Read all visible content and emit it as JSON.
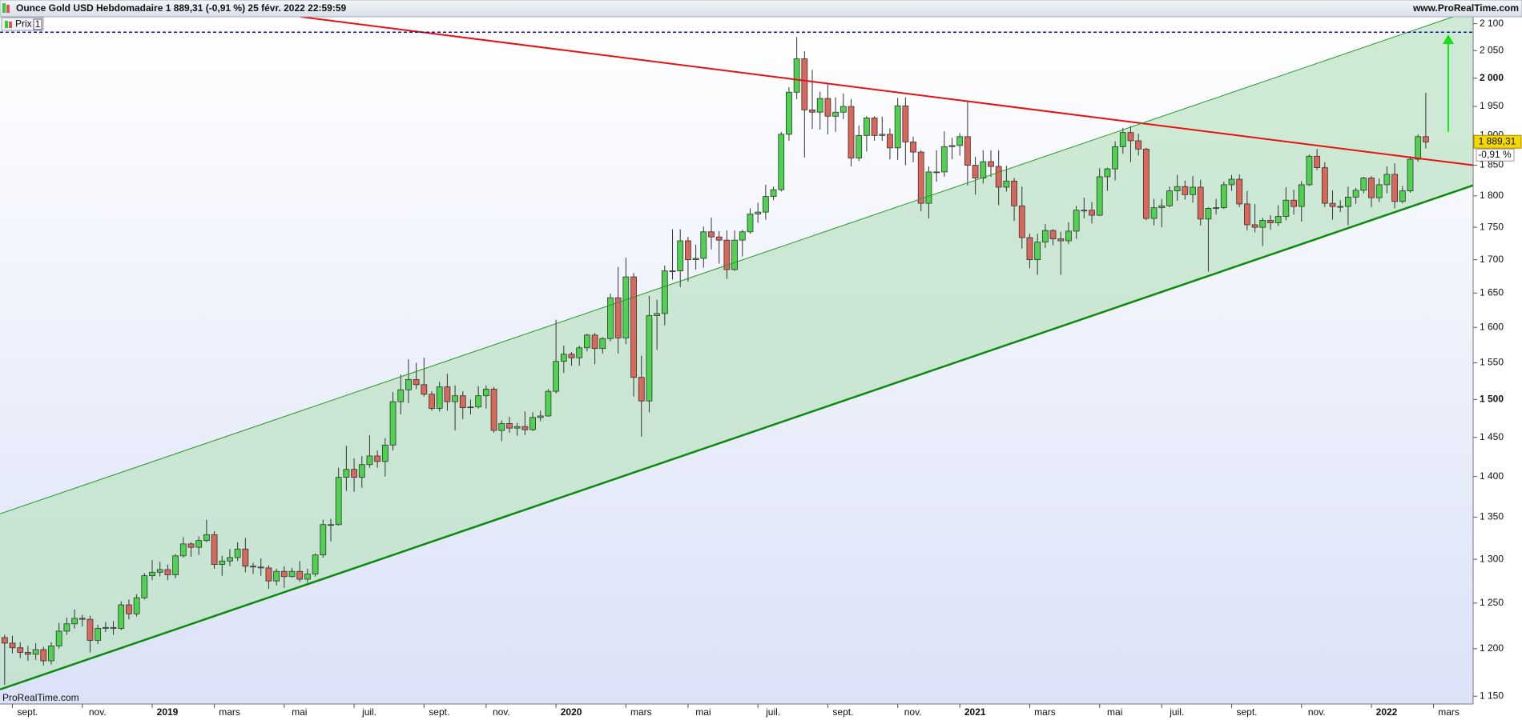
{
  "header": {
    "title": "Ounce Gold USD Hebdomadaire 1 889,31 (-0,91 %) 25 févr. 2022 22:59:59",
    "site": "www.ProRealTime.com"
  },
  "legend": {
    "label": "Prix",
    "badge": "1"
  },
  "watermark": "ProRealTime.com",
  "chart_data": {
    "type": "candlestick",
    "open": [
      1212,
      1206,
      1201,
      1196,
      1194,
      1199,
      1187,
      1203,
      1219,
      1227,
      1233,
      1232,
      1209,
      1222,
      1223,
      1222,
      1248,
      1238,
      1256,
      1281,
      1285,
      1288,
      1282,
      1304,
      1318,
      1314,
      1322,
      1329,
      1294,
      1298,
      1302,
      1312,
      1292,
      1291,
      1290,
      1275,
      1286,
      1280,
      1286,
      1277,
      1283,
      1305,
      1341,
      1341,
      1399,
      1409,
      1399,
      1415,
      1426,
      1419,
      1440,
      1497,
      1513,
      1527,
      1520,
      1507,
      1488,
      1517,
      1497,
      1505,
      1489,
      1490,
      1505,
      1514,
      1459,
      1468,
      1462,
      1464,
      1460,
      1476,
      1478,
      1511,
      1552,
      1562,
      1557,
      1571,
      1589,
      1570,
      1584,
      1643,
      1585,
      1674,
      1530,
      1498,
      1617,
      1620,
      1683,
      1683,
      1729,
      1700,
      1702,
      1743,
      1735,
      1730,
      1685,
      1730,
      1743,
      1771,
      1774,
      1799,
      1810,
      1902,
      1975,
      2035,
      1944,
      1940,
      1964,
      1933,
      1940,
      1950,
      1862,
      1900,
      1930,
      1900,
      1902,
      1879,
      1951,
      1889,
      1872,
      1788,
      1839,
      1839,
      1881,
      1883,
      1898,
      1850,
      1829,
      1856,
      1848,
      1814,
      1824,
      1784,
      1734,
      1700,
      1727,
      1745,
      1732,
      1729,
      1744,
      1777,
      1777,
      1769,
      1831,
      1844,
      1881,
      1905,
      1891,
      1877,
      1764,
      1781,
      1784,
      1808,
      1815,
      1802,
      1814,
      1763,
      1780,
      1781,
      1818,
      1827,
      1787,
      1754,
      1750,
      1761,
      1757,
      1767,
      1793,
      1783,
      1818,
      1865,
      1846,
      1788,
      1783,
      1783,
      1798,
      1809,
      1829,
      1797,
      1818,
      1835,
      1791,
      1808,
      1860,
      1898
    ],
    "high": [
      1215,
      1214,
      1207,
      1203,
      1206,
      1202,
      1207,
      1228,
      1234,
      1243,
      1237,
      1236,
      1226,
      1229,
      1230,
      1252,
      1254,
      1260,
      1284,
      1299,
      1297,
      1294,
      1306,
      1326,
      1320,
      1327,
      1347,
      1333,
      1304,
      1312,
      1320,
      1325,
      1296,
      1301,
      1293,
      1289,
      1292,
      1290,
      1298,
      1289,
      1307,
      1347,
      1348,
      1411,
      1439,
      1423,
      1426,
      1453,
      1433,
      1449,
      1510,
      1534,
      1555,
      1550,
      1557,
      1511,
      1524,
      1535,
      1519,
      1511,
      1500,
      1518,
      1519,
      1517,
      1472,
      1477,
      1469,
      1484,
      1483,
      1485,
      1514,
      1611,
      1574,
      1565,
      1574,
      1591,
      1592,
      1586,
      1649,
      1689,
      1703,
      1680,
      1560,
      1646,
      1640,
      1691,
      1747,
      1747,
      1735,
      1723,
      1751,
      1765,
      1744,
      1745,
      1745,
      1746,
      1780,
      1789,
      1818,
      1815,
      1906,
      1984,
      2075,
      2049,
      2015,
      1976,
      1992,
      1966,
      1973,
      1963,
      1917,
      1933,
      1933,
      1932,
      1912,
      1965,
      1966,
      1898,
      1875,
      1848,
      1875,
      1907,
      1896,
      1904,
      1959,
      1864,
      1875,
      1875,
      1875,
      1849,
      1829,
      1815,
      1740,
      1740,
      1755,
      1747,
      1743,
      1758,
      1784,
      1797,
      1790,
      1845,
      1846,
      1890,
      1913,
      1916,
      1903,
      1879,
      1795,
      1795,
      1815,
      1834,
      1825,
      1832,
      1826,
      1782,
      1795,
      1823,
      1834,
      1835,
      1808,
      1787,
      1765,
      1769,
      1785,
      1814,
      1810,
      1824,
      1868,
      1877,
      1855,
      1809,
      1793,
      1815,
      1813,
      1831,
      1832,
      1828,
      1848,
      1853,
      1816,
      1865,
      1902,
      1974
    ],
    "low": [
      1162,
      1195,
      1190,
      1187,
      1188,
      1182,
      1183,
      1200,
      1215,
      1222,
      1224,
      1196,
      1205,
      1218,
      1215,
      1220,
      1232,
      1235,
      1254,
      1276,
      1280,
      1276,
      1278,
      1302,
      1303,
      1305,
      1320,
      1289,
      1281,
      1292,
      1298,
      1285,
      1283,
      1281,
      1266,
      1270,
      1267,
      1279,
      1274,
      1273,
      1280,
      1302,
      1321,
      1340,
      1382,
      1381,
      1386,
      1411,
      1411,
      1400,
      1433,
      1480,
      1495,
      1514,
      1504,
      1485,
      1484,
      1485,
      1459,
      1474,
      1480,
      1488,
      1488,
      1456,
      1445,
      1456,
      1452,
      1453,
      1458,
      1471,
      1477,
      1508,
      1536,
      1546,
      1546,
      1566,
      1548,
      1563,
      1580,
      1563,
      1576,
      1504,
      1451,
      1483,
      1568,
      1603,
      1670,
      1659,
      1667,
      1685,
      1688,
      1716,
      1694,
      1671,
      1683,
      1705,
      1740,
      1757,
      1762,
      1793,
      1807,
      1891,
      1963,
      1863,
      1911,
      1910,
      1902,
      1906,
      1928,
      1848,
      1857,
      1873,
      1891,
      1891,
      1860,
      1859,
      1850,
      1855,
      1775,
      1764,
      1823,
      1831,
      1860,
      1866,
      1817,
      1802,
      1820,
      1831,
      1785,
      1807,
      1760,
      1717,
      1687,
      1677,
      1718,
      1722,
      1677,
      1724,
      1732,
      1764,
      1756,
      1768,
      1808,
      1825,
      1869,
      1855,
      1866,
      1761,
      1753,
      1750,
      1782,
      1792,
      1794,
      1789,
      1753,
      1682,
      1770,
      1779,
      1808,
      1782,
      1745,
      1742,
      1721,
      1746,
      1752,
      1761,
      1770,
      1759,
      1816,
      1842,
      1782,
      1762,
      1774,
      1753,
      1787,
      1804,
      1782,
      1790,
      1804,
      1780,
      1788,
      1805,
      1856,
      1878
    ],
    "close": [
      1206,
      1201,
      1196,
      1194,
      1199,
      1187,
      1203,
      1219,
      1227,
      1233,
      1232,
      1209,
      1222,
      1223,
      1222,
      1248,
      1238,
      1256,
      1281,
      1285,
      1288,
      1282,
      1304,
      1318,
      1314,
      1322,
      1329,
      1294,
      1298,
      1302,
      1312,
      1292,
      1291,
      1290,
      1275,
      1286,
      1280,
      1286,
      1277,
      1283,
      1305,
      1341,
      1341,
      1399,
      1409,
      1399,
      1415,
      1426,
      1419,
      1440,
      1497,
      1513,
      1527,
      1520,
      1507,
      1488,
      1517,
      1497,
      1505,
      1489,
      1490,
      1505,
      1514,
      1459,
      1468,
      1462,
      1464,
      1460,
      1476,
      1478,
      1511,
      1552,
      1562,
      1557,
      1571,
      1589,
      1570,
      1584,
      1643,
      1585,
      1674,
      1530,
      1498,
      1617,
      1620,
      1683,
      1683,
      1729,
      1700,
      1702,
      1743,
      1735,
      1730,
      1685,
      1730,
      1743,
      1771,
      1774,
      1799,
      1810,
      1902,
      1975,
      2035,
      1944,
      1940,
      1964,
      1933,
      1940,
      1950,
      1862,
      1900,
      1930,
      1900,
      1902,
      1879,
      1951,
      1889,
      1872,
      1788,
      1839,
      1839,
      1881,
      1883,
      1898,
      1850,
      1829,
      1856,
      1848,
      1814,
      1824,
      1784,
      1734,
      1700,
      1727,
      1745,
      1732,
      1729,
      1744,
      1777,
      1777,
      1769,
      1831,
      1844,
      1881,
      1905,
      1891,
      1877,
      1764,
      1781,
      1784,
      1808,
      1815,
      1802,
      1814,
      1763,
      1780,
      1781,
      1818,
      1827,
      1787,
      1754,
      1750,
      1761,
      1757,
      1767,
      1793,
      1783,
      1818,
      1865,
      1846,
      1788,
      1783,
      1783,
      1798,
      1809,
      1829,
      1797,
      1818,
      1835,
      1791,
      1808,
      1860,
      1898,
      1889
    ],
    "up_color": "#4fd24f",
    "down_color": "#d9675c",
    "xlim": [
      -0.6,
      189.1
    ],
    "xticks": [
      {
        "value": 1,
        "label": "sept."
      },
      {
        "value": 10,
        "label": "nov."
      },
      {
        "value": 19,
        "label": "2019"
      },
      {
        "value": 27,
        "label": "mars"
      },
      {
        "value": 36,
        "label": "mai"
      },
      {
        "value": 45,
        "label": "juil."
      },
      {
        "value": 54,
        "label": "sept."
      },
      {
        "value": 62,
        "label": "nov."
      },
      {
        "value": 71,
        "label": "2020"
      },
      {
        "value": 80,
        "label": "mars"
      },
      {
        "value": 88,
        "label": "mai"
      },
      {
        "value": 97,
        "label": "juil."
      },
      {
        "value": 106,
        "label": "sept."
      },
      {
        "value": 115,
        "label": "nov."
      },
      {
        "value": 123,
        "label": "2021"
      },
      {
        "value": 132,
        "label": "mars"
      },
      {
        "value": 141,
        "label": "mai"
      },
      {
        "value": 149,
        "label": "juil."
      },
      {
        "value": 158,
        "label": "sept."
      },
      {
        "value": 167,
        "label": "nov."
      },
      {
        "value": 176,
        "label": "2022"
      },
      {
        "value": 184,
        "label": "mars"
      }
    ],
    "ylim": [
      1142,
      2113
    ],
    "log_scale": true,
    "yticks": [
      {
        "value": 2100,
        "label": "2 100"
      },
      {
        "value": 2050,
        "label": "2 050"
      },
      {
        "value": 2000,
        "label": "2 000"
      },
      {
        "value": 1950,
        "label": "1 950"
      },
      {
        "value": 1900,
        "label": "1 900"
      },
      {
        "value": 1850,
        "label": "1 850"
      },
      {
        "value": 1800,
        "label": "1 800"
      },
      {
        "value": 1750,
        "label": "1 750"
      },
      {
        "value": 1700,
        "label": "1 700"
      },
      {
        "value": 1650,
        "label": "1 650"
      },
      {
        "value": 1600,
        "label": "1 600"
      },
      {
        "value": 1550,
        "label": "1 550"
      },
      {
        "value": 1500,
        "label": "1 500"
      },
      {
        "value": 1450,
        "label": "1 450"
      },
      {
        "value": 1400,
        "label": "1 400"
      },
      {
        "value": 1350,
        "label": "1 350"
      },
      {
        "value": 1300,
        "label": "1 300"
      },
      {
        "value": 1250,
        "label": "1 250"
      },
      {
        "value": 1200,
        "label": "1 200"
      },
      {
        "value": 1150,
        "label": "1 150"
      }
    ],
    "last_price": {
      "value": 1889.31,
      "label": "1 889,31"
    },
    "change": {
      "value": -0.91,
      "label": "-0,91 %"
    },
    "channel_fill": "#bfe3c6",
    "lines": [
      {
        "color": "#e81010",
        "width": 2,
        "x": [
          38.1,
          189.1
        ],
        "y": [
          2113,
          1850
        ]
      },
      {
        "color": "#0c8a0c",
        "width": 2.5,
        "x": [
          -0.6,
          189.1
        ],
        "y": [
          1157,
          1817
        ]
      },
      {
        "color": "#2a9a2a",
        "width": 1,
        "x": [
          -0.6,
          189.1
        ],
        "y": [
          1354,
          2126
        ]
      }
    ],
    "hline": {
      "value": 2084,
      "color": "#1010b0"
    },
    "arrow": {
      "color": "#18e018",
      "x": 185.9,
      "y": [
        1906,
        2080
      ]
    }
  }
}
